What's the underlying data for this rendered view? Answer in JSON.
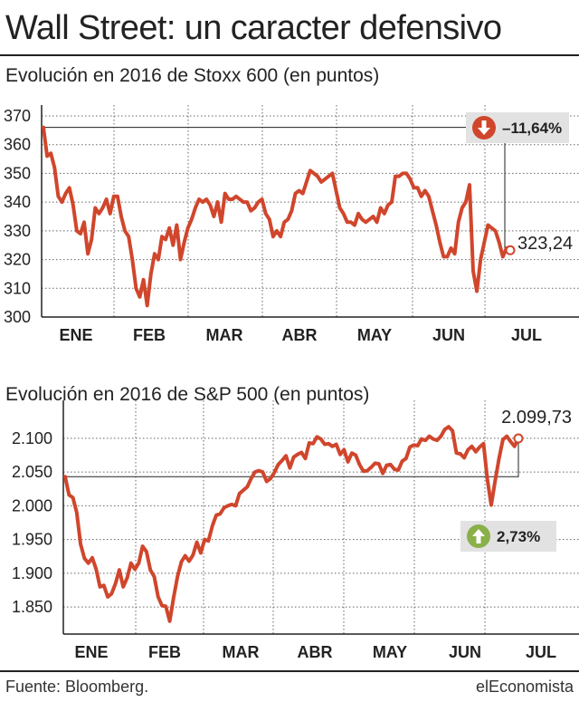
{
  "headline": "Wall Street: un caracter defensivo",
  "footer": {
    "source": "Fuente: Bloomberg.",
    "brand": "elEconomista"
  },
  "colors": {
    "series": "#d0462c",
    "text": "#222222",
    "badge_down": "#d0462c",
    "badge_up": "#8ab04a",
    "badge_bg": "#e2e2e2"
  },
  "chart_data": [
    {
      "type": "line",
      "title": "Evolución en 2016 de Stoxx 600 (en puntos)",
      "ylim": [
        300,
        370
      ],
      "yticks": [
        "300",
        "310",
        "320",
        "330",
        "340",
        "350",
        "360",
        "370"
      ],
      "months": [
        "ENE",
        "FEB",
        "MAR",
        "ABR",
        "MAY",
        "JUN",
        "JUL"
      ],
      "grid": "dotted vertical + horizontal",
      "series": [
        {
          "values": [
            366,
            356,
            357,
            352,
            342,
            340,
            343,
            345,
            339,
            330,
            329,
            333,
            322,
            327,
            338,
            336,
            338,
            341,
            336,
            342,
            342,
            335,
            330,
            328,
            320,
            310,
            307,
            313,
            304,
            315,
            322,
            320,
            328,
            327,
            331,
            325,
            332,
            320,
            326,
            331,
            334,
            338,
            341,
            340,
            341,
            339,
            335,
            340,
            333,
            343,
            341,
            341,
            342,
            341,
            340,
            340,
            337,
            338,
            340,
            341,
            336,
            334,
            328,
            330,
            328,
            333,
            334,
            337,
            343,
            344,
            343,
            347,
            351,
            350,
            349,
            347,
            348,
            349,
            350,
            344,
            338,
            336,
            333,
            333,
            332,
            336,
            334,
            333,
            334,
            335,
            333,
            338,
            336,
            339,
            340,
            349,
            349,
            350,
            350,
            348,
            345,
            345,
            342,
            344,
            342,
            337,
            332,
            326,
            321,
            321,
            324,
            322,
            333,
            338,
            340,
            346,
            316,
            309,
            320,
            326,
            332,
            331,
            330,
            326,
            321,
            324,
            323.24
          ]
        }
      ],
      "annotations": {
        "last_value": "323,24",
        "change": "–11,64%",
        "direction": "down"
      }
    },
    {
      "type": "line",
      "title": "Evolución en 2016 de S&P 500 (en puntos)",
      "ylim": [
        1810,
        2140
      ],
      "yticks": [
        "1.850",
        "1.900",
        "1.950",
        "2.000",
        "2.050",
        "2.100"
      ],
      "months": [
        "ENE",
        "FEB",
        "MAR",
        "ABR",
        "MAY",
        "JUN",
        "JUL"
      ],
      "grid": "dotted vertical + horizontal",
      "series": [
        {
          "values": [
            2043,
            2016,
            2012,
            1990,
            1943,
            1922,
            1915,
            1923,
            1906,
            1880,
            1882,
            1865,
            1870,
            1885,
            1905,
            1880,
            1893,
            1915,
            1906,
            1915,
            1940,
            1932,
            1905,
            1895,
            1865,
            1852,
            1851,
            1829,
            1864,
            1895,
            1917,
            1926,
            1918,
            1927,
            1946,
            1930,
            1950,
            1948,
            1970,
            1986,
            1988,
            1997,
            2000,
            2002,
            2000,
            2018,
            2023,
            2028,
            2040,
            2050,
            2052,
            2050,
            2036,
            2040,
            2049,
            2061,
            2067,
            2074,
            2056,
            2072,
            2076,
            2079,
            2070,
            2093,
            2092,
            2102,
            2099,
            2091,
            2092,
            2088,
            2091,
            2076,
            2083,
            2065,
            2078,
            2075,
            2061,
            2051,
            2052,
            2057,
            2063,
            2062,
            2048,
            2060,
            2061,
            2054,
            2053,
            2066,
            2070,
            2087,
            2090,
            2089,
            2099,
            2097,
            2103,
            2099,
            2097,
            2103,
            2113,
            2117,
            2111,
            2078,
            2077,
            2071,
            2083,
            2088,
            2080,
            2087,
            2092,
            2039,
            2001,
            2037,
            2070,
            2098,
            2103,
            2095,
            2088,
            2099.73
          ]
        }
      ],
      "annotations": {
        "last_value": "2.099,73",
        "change": "2,73%",
        "direction": "up"
      }
    }
  ]
}
